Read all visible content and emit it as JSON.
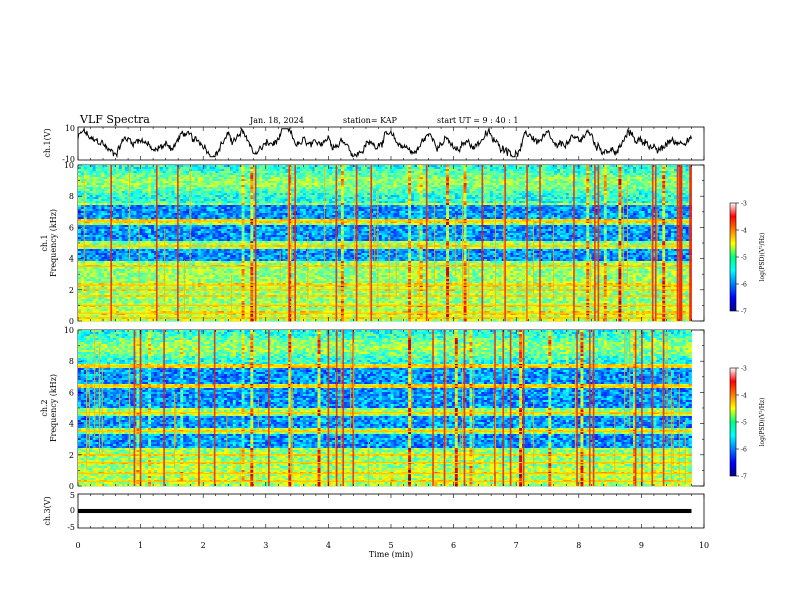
{
  "header": {
    "title": "VLF Spectra",
    "date": "Jan. 18, 2024",
    "station": "station= KAP",
    "start": "start UT =  9 : 40 : 1"
  },
  "chart_data": [
    {
      "id": "ch1-waveform",
      "type": "line",
      "ylabel": "ch.1(V)",
      "ylim": [
        -10,
        10
      ],
      "yticks": [
        "10",
        "-10"
      ],
      "xlim": [
        0,
        10
      ],
      "x_extent": 9.8,
      "description_values": "noisy waveform oscillating mostly between about -7 and 8 V",
      "color": "#000000"
    },
    {
      "id": "ch1-spectrogram",
      "type": "heatmap",
      "ylabel": "ch.1\nFrequency (kHz)",
      "ylabel_lines": [
        "ch.1",
        "Frequency (kHz)"
      ],
      "ylim": [
        0,
        10
      ],
      "yticks": [
        "0",
        "2",
        "4",
        "6",
        "8",
        "10"
      ],
      "xlim": [
        0,
        10
      ],
      "x_extent": 9.8,
      "colorbar": {
        "label": "log(PSD)(V²/Hz)",
        "range": [
          -7,
          -3
        ],
        "ticks": [
          "-3",
          "-4",
          "-5",
          "-6",
          "-7"
        ]
      },
      "quiet_bands_khz": [
        [
          3.9,
          4.6
        ],
        [
          5.1,
          6.2
        ],
        [
          6.6,
          7.4
        ]
      ],
      "loud_lines_khz": [
        0.2,
        0.5,
        1.0,
        1.6,
        2.0,
        2.3,
        3.5,
        4.8,
        6.4
      ]
    },
    {
      "id": "ch2-spectrogram",
      "type": "heatmap",
      "ylabel": "ch.2\nFrequency (kHz)",
      "ylabel_lines": [
        "ch.2",
        "Frequency (kHz)"
      ],
      "ylim": [
        0,
        10
      ],
      "yticks": [
        "0",
        "2",
        "4",
        "6",
        "8",
        "10"
      ],
      "xlim": [
        0,
        10
      ],
      "x_extent": 9.8,
      "colorbar": {
        "label": "log(PSD)(V²/Hz)",
        "range": [
          -7,
          -3
        ],
        "ticks": [
          "-3",
          "-4",
          "-5",
          "-6",
          "-7"
        ]
      },
      "quiet_bands_khz": [
        [
          2.5,
          3.3
        ],
        [
          3.7,
          4.5
        ],
        [
          5.0,
          6.3
        ],
        [
          6.5,
          7.5
        ]
      ],
      "loud_lines_khz": [
        0.3,
        0.8,
        1.5,
        2.0,
        3.5,
        4.7,
        6.4,
        7.7
      ]
    },
    {
      "id": "ch3-signal",
      "type": "line",
      "ylabel": "ch.3(V)",
      "ylim": [
        -5,
        5
      ],
      "yticks": [
        "5",
        "0",
        "-5"
      ],
      "xlim": [
        0,
        10
      ],
      "x_extent": 9.8,
      "level_v": [
        -0.6,
        0.6
      ],
      "xlabel": "Time (min)",
      "xticks": [
        "0",
        "1",
        "2",
        "3",
        "4",
        "5",
        "6",
        "7",
        "8",
        "9",
        "10"
      ]
    }
  ],
  "colors": {
    "jet_low": "#00008f",
    "jet_mid": "#00ff80",
    "jet_high": "#ff0000",
    "axes": "#000000"
  }
}
